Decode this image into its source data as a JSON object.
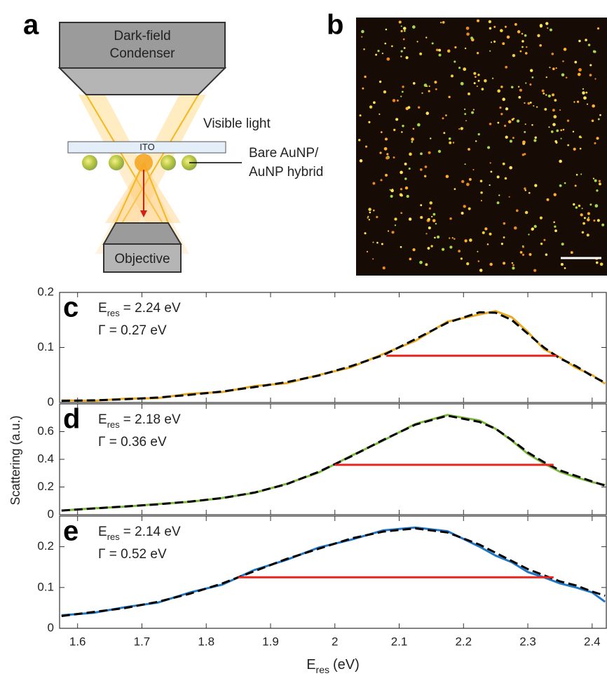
{
  "panel_a": {
    "label": "a",
    "condenser": [
      "Dark-field",
      "Condenser"
    ],
    "light": "Visible light",
    "substrate": "ITO",
    "particle": [
      "Bare AuNP/",
      "AuNP hybrid"
    ],
    "objective": "Objective"
  },
  "panel_b": {
    "label": "b"
  },
  "chart_data": [
    {
      "type": "line",
      "panel_label": "c",
      "resonance": {
        "symbol": "E",
        "subscript": "res",
        "text": "= 2.24 eV"
      },
      "linewidth": "Γ = 0.27 eV",
      "xlim": [
        1.572,
        2.422
      ],
      "ylim": [
        0,
        0.2
      ],
      "yticks": [
        0,
        0.1,
        0.2
      ],
      "x": [
        1.575,
        1.625,
        1.675,
        1.725,
        1.775,
        1.825,
        1.875,
        1.925,
        1.975,
        2.025,
        2.075,
        2.125,
        2.175,
        2.225,
        2.25,
        2.275,
        2.3,
        2.325,
        2.35,
        2.375,
        2.4,
        2.42
      ],
      "series": [
        {
          "color": "#e8a923",
          "style": "solid",
          "values": [
            0.004,
            0.003,
            0.007,
            0.008,
            0.016,
            0.019,
            0.03,
            0.035,
            0.05,
            0.064,
            0.088,
            0.112,
            0.147,
            0.16,
            0.166,
            0.155,
            0.128,
            0.097,
            0.082,
            0.063,
            0.05,
            0.034
          ]
        },
        {
          "color": "#000000",
          "style": "dashed",
          "values": [
            0.003,
            0.004,
            0.006,
            0.009,
            0.014,
            0.02,
            0.028,
            0.037,
            0.049,
            0.066,
            0.086,
            0.115,
            0.145,
            0.164,
            0.163,
            0.15,
            0.125,
            0.1,
            0.08,
            0.066,
            0.048,
            0.036
          ]
        },
        {
          "color": "#e8261e",
          "style": "solid",
          "x": [
            2.08,
            2.345
          ],
          "values": [
            0.085,
            0.085
          ]
        }
      ]
    },
    {
      "type": "line",
      "panel_label": "d",
      "resonance": {
        "symbol": "E",
        "subscript": "res",
        "text": "= 2.18 eV"
      },
      "linewidth": "Γ = 0.36 eV",
      "ylabel": "Scattering (a.u.)",
      "xlim": [
        1.572,
        2.422
      ],
      "ylim": [
        0,
        0.8
      ],
      "yticks": [
        0,
        0.2,
        0.4,
        0.6
      ],
      "x": [
        1.575,
        1.625,
        1.675,
        1.725,
        1.775,
        1.825,
        1.875,
        1.925,
        1.975,
        2.025,
        2.075,
        2.125,
        2.175,
        2.225,
        2.25,
        2.275,
        2.3,
        2.325,
        2.35,
        2.375,
        2.4,
        2.42
      ],
      "series": [
        {
          "color": "#7ab83a",
          "style": "solid",
          "values": [
            0.03,
            0.046,
            0.058,
            0.077,
            0.093,
            0.121,
            0.158,
            0.223,
            0.305,
            0.425,
            0.535,
            0.655,
            0.72,
            0.68,
            0.62,
            0.535,
            0.44,
            0.37,
            0.31,
            0.27,
            0.235,
            0.215
          ]
        },
        {
          "color": "#000000",
          "style": "dashed",
          "values": [
            0.03,
            0.045,
            0.06,
            0.075,
            0.095,
            0.12,
            0.16,
            0.22,
            0.31,
            0.42,
            0.54,
            0.65,
            0.715,
            0.67,
            0.62,
            0.54,
            0.45,
            0.38,
            0.32,
            0.28,
            0.24,
            0.21
          ]
        },
        {
          "color": "#e8261e",
          "style": "solid",
          "x": [
            2.0,
            2.34
          ],
          "values": [
            0.36,
            0.36
          ]
        }
      ]
    },
    {
      "type": "line",
      "panel_label": "e",
      "resonance": {
        "symbol": "E",
        "subscript": "res",
        "text": "= 2.14 eV"
      },
      "linewidth": "Γ = 0.52 eV",
      "xlabel": {
        "symbol": "E",
        "subscript": "res",
        "unit": "(eV)"
      },
      "xlim": [
        1.572,
        2.422
      ],
      "xticks": [
        1.6,
        1.7,
        1.8,
        1.9,
        2,
        2.1,
        2.2,
        2.3,
        2.4
      ],
      "ylim": [
        0,
        0.275
      ],
      "yticks": [
        0,
        0.1,
        0.2
      ],
      "x": [
        1.575,
        1.625,
        1.675,
        1.725,
        1.775,
        1.825,
        1.875,
        1.925,
        1.975,
        2.025,
        2.075,
        2.125,
        2.175,
        2.225,
        2.25,
        2.275,
        2.3,
        2.325,
        2.35,
        2.375,
        2.4,
        2.42
      ],
      "series": [
        {
          "color": "#1f77c4",
          "style": "solid",
          "values": [
            0.032,
            0.038,
            0.052,
            0.063,
            0.088,
            0.107,
            0.143,
            0.168,
            0.198,
            0.217,
            0.24,
            0.247,
            0.238,
            0.2,
            0.178,
            0.162,
            0.138,
            0.125,
            0.11,
            0.1,
            0.088,
            0.065
          ]
        },
        {
          "color": "#000000",
          "style": "dashed",
          "values": [
            0.03,
            0.04,
            0.05,
            0.065,
            0.085,
            0.11,
            0.14,
            0.17,
            0.195,
            0.22,
            0.237,
            0.245,
            0.235,
            0.205,
            0.185,
            0.165,
            0.145,
            0.13,
            0.115,
            0.105,
            0.09,
            0.08
          ]
        },
        {
          "color": "#e8261e",
          "style": "solid",
          "x": [
            1.85,
            2.34
          ],
          "values": [
            0.125,
            0.125
          ]
        }
      ]
    }
  ]
}
